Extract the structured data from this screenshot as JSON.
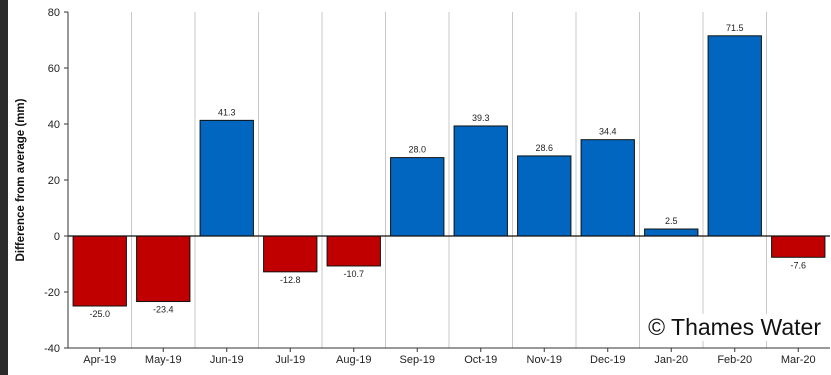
{
  "chart_data": {
    "type": "bar",
    "title": "",
    "xlabel": "",
    "ylabel": "Difference from average (mm)",
    "ylim": [
      -40,
      80
    ],
    "yticks": [
      -40,
      -20,
      0,
      20,
      40,
      60,
      80
    ],
    "grid": "vertical",
    "categories": [
      "Apr-19",
      "May-19",
      "Jun-19",
      "Jul-19",
      "Aug-19",
      "Sep-19",
      "Oct-19",
      "Nov-19",
      "Dec-19",
      "Jan-20",
      "Feb-20",
      "Mar-20"
    ],
    "values": [
      -25.0,
      -23.4,
      41.3,
      -12.8,
      -10.7,
      28.0,
      39.3,
      28.6,
      34.4,
      2.5,
      71.5,
      -7.6
    ],
    "data_labels": [
      "-25.0",
      "-23.4",
      "41.3",
      "-12.8",
      "-10.7",
      "28.0",
      "39.3",
      "28.6",
      "34.4",
      "2.5",
      "71.5",
      "-7.6"
    ],
    "colors": {
      "positive": "#0066c0",
      "negative": "#c00000"
    }
  },
  "watermark": "© Thames Water"
}
